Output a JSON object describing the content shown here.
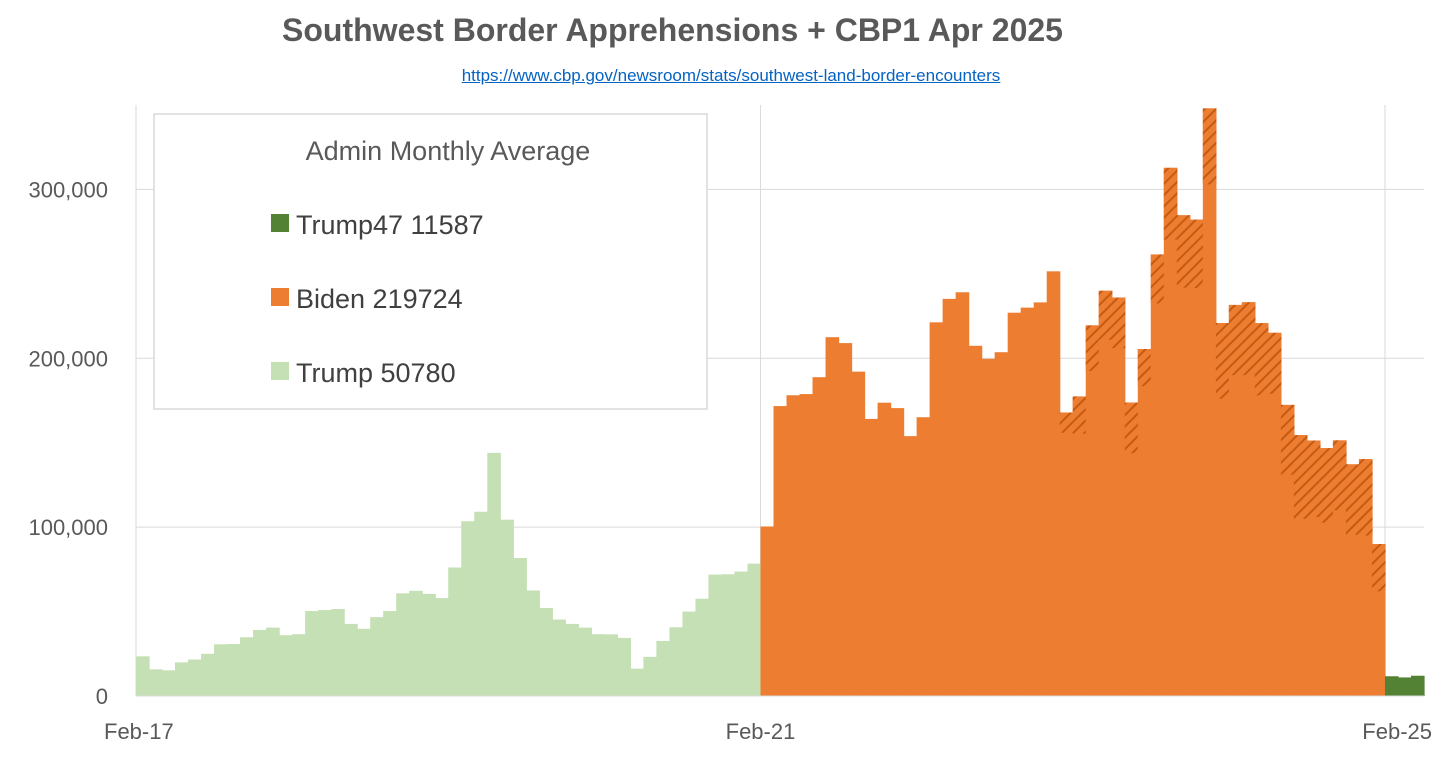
{
  "title": "Southwest Border Apprehensions + CBP1 Apr 2025",
  "source_link": "https://www.cbp.gov/newsroom/stats/southwest-land-border-encounters",
  "colors": {
    "trump47": "#548235",
    "biden": "#ed7d31",
    "biden_hatch": "#c55a11",
    "trump": "#c5e0b4",
    "grid": "#d9d9d9",
    "text": "#595959"
  },
  "chart_data": {
    "type": "bar",
    "title": "Southwest Border Apprehensions + CBP1 Apr 2025",
    "xlabel": "",
    "ylabel": "",
    "ylim": [
      0,
      350000
    ],
    "y_ticks": [
      {
        "value": 0,
        "label": "0"
      },
      {
        "value": 100000,
        "label": "100,000"
      },
      {
        "value": 200000,
        "label": "200,000"
      },
      {
        "value": 300000,
        "label": "300,000"
      }
    ],
    "x_ticks": [
      {
        "index": 0,
        "label": "Feb-17"
      },
      {
        "index": 48,
        "label": "Feb-21"
      },
      {
        "index": 96,
        "label": "Feb-25"
      }
    ],
    "grid": true,
    "legend": {
      "title": "Admin Monthly Average",
      "placement": "top-left",
      "entries": [
        {
          "label": "Trump47 11587",
          "series": "trump47"
        },
        {
          "label": "Biden 219724",
          "series": "biden"
        },
        {
          "label": "Trump 50780",
          "series": "trump"
        }
      ]
    },
    "series": [
      {
        "key": "trump",
        "start_index": 0,
        "values": [
          23500,
          15800,
          15200,
          19900,
          21600,
          25000,
          30600,
          30800,
          34800,
          39100,
          40500,
          36000,
          36600,
          50300,
          50900,
          51500,
          42700,
          39800,
          46700,
          50300,
          60800,
          62300,
          60500,
          58000,
          76100,
          103500,
          109100,
          144000,
          104400,
          81700,
          62500,
          52100,
          45300,
          42700,
          40500,
          36600,
          36500,
          34400,
          16200,
          23200,
          32600,
          40700,
          50000,
          57600,
          71900,
          72100,
          73700,
          78400
        ]
      },
      {
        "key": "biden",
        "start_index": 48,
        "values": [
          100400,
          171700,
          178100,
          178800,
          188800,
          212500,
          209000,
          192100,
          164100,
          173700,
          170500,
          153900,
          165100,
          221300,
          235200,
          239100,
          207400,
          199700,
          203600,
          227000,
          230000,
          233100,
          251500,
          167900,
          177400,
          219500,
          240000,
          236000,
          173800,
          205500,
          261500,
          312800,
          284700,
          282100,
          348000,
          220900,
          231600,
          233200,
          220800,
          215100,
          172400,
          154500,
          151300,
          146800,
          151400,
          137200,
          140300,
          90000
        ],
        "cbp1_portion": [
          0,
          0,
          0,
          0,
          0,
          0,
          0,
          0,
          0,
          0,
          0,
          0,
          0,
          0,
          0,
          0,
          0,
          0,
          0,
          0,
          0,
          0,
          0,
          12000,
          22000,
          27000,
          29000,
          30000,
          30000,
          22000,
          29000,
          42500,
          42900,
          40500,
          45000,
          44900,
          41600,
          43200,
          42800,
          36100,
          41300,
          49500,
          45300,
          44100,
          41400,
          41700,
          45300,
          28000
        ]
      },
      {
        "key": "trump47",
        "start_index": 96,
        "values": [
          11700,
          11000,
          12000
        ]
      }
    ]
  }
}
